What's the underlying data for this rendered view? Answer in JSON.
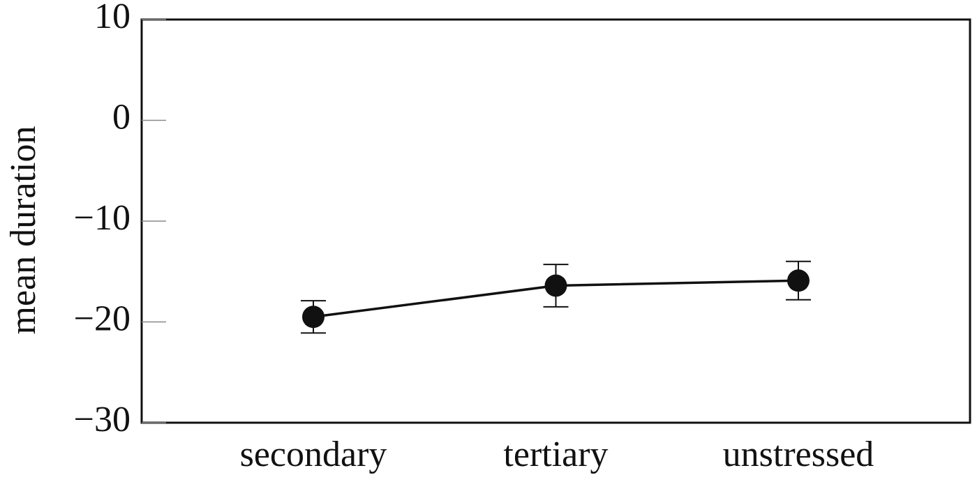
{
  "chart_data": {
    "type": "line",
    "ylabel": "mean duration",
    "categories": [
      "secondary",
      "tertiary",
      "unstressed"
    ],
    "values": [
      -19.5,
      -16.4,
      -15.9
    ],
    "errors": [
      1.6,
      2.1,
      1.9
    ],
    "color": "#111111",
    "ylim": [
      -30,
      10
    ],
    "yticks": [
      {
        "value": -30,
        "label": "−30"
      },
      {
        "value": -20,
        "label": "−20"
      },
      {
        "value": -10,
        "label": "−10"
      },
      0,
      10
    ],
    "grid": false
  }
}
